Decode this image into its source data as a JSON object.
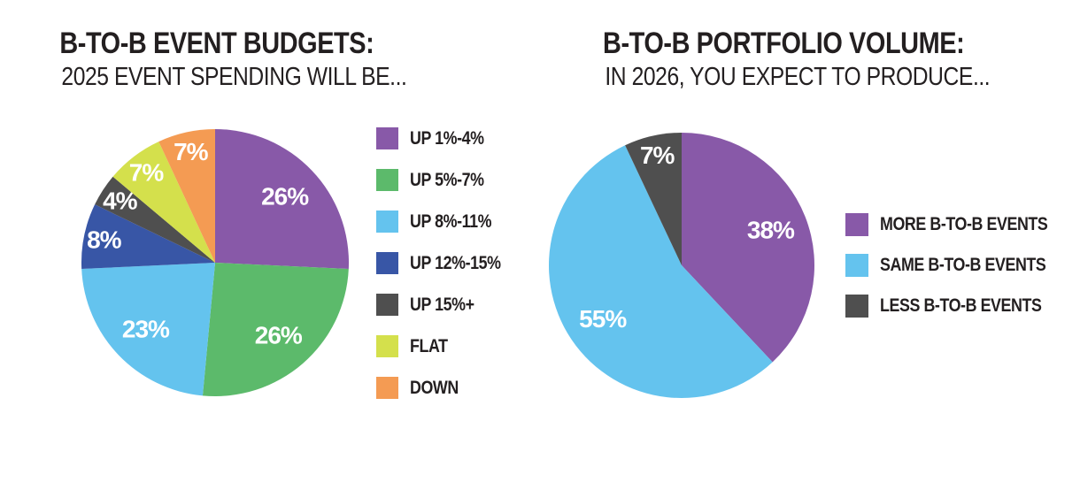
{
  "page": {
    "background_color": "#ffffff",
    "text_color": "#231F20",
    "label_text_color": "#ffffff"
  },
  "chart_data": [
    {
      "type": "pie",
      "title": "B-TO-B EVENT BUDGETS:",
      "subtitle": "2025 EVENT SPENDING WILL BE...",
      "start_angle_deg": 0,
      "direction": "clockwise",
      "legend_position": "right",
      "slices": [
        {
          "label": "UP 1%-4%",
          "value": 26,
          "display": "26%",
          "color": "#8859A8"
        },
        {
          "label": "UP 5%-7%",
          "value": 26,
          "display": "26%",
          "color": "#5CBA6B"
        },
        {
          "label": "UP 8%-11%",
          "value": 23,
          "display": "23%",
          "color": "#64C3EE"
        },
        {
          "label": "UP 12%-15%",
          "value": 8,
          "display": "8%",
          "color": "#3856A6"
        },
        {
          "label": "UP 15%+",
          "value": 4,
          "display": "4%",
          "color": "#4F4F4F"
        },
        {
          "label": "FLAT",
          "value": 7,
          "display": "7%",
          "color": "#D4E04C"
        },
        {
          "label": "DOWN",
          "value": 7,
          "display": "7%",
          "color": "#F49B53"
        }
      ]
    },
    {
      "type": "pie",
      "title": "B-TO-B PORTFOLIO VOLUME:",
      "subtitle": "IN 2026, YOU EXPECT TO PRODUCE...",
      "start_angle_deg": 0,
      "direction": "clockwise",
      "legend_position": "right",
      "slices": [
        {
          "label": "MORE B-TO-B EVENTS",
          "value": 38,
          "display": "38%",
          "color": "#8859A8"
        },
        {
          "label": "SAME B-TO-B EVENTS",
          "value": 55,
          "display": "55%",
          "color": "#64C3EE"
        },
        {
          "label": "LESS B-TO-B EVENTS",
          "value": 7,
          "display": "7%",
          "color": "#4F4F4F"
        }
      ]
    }
  ]
}
